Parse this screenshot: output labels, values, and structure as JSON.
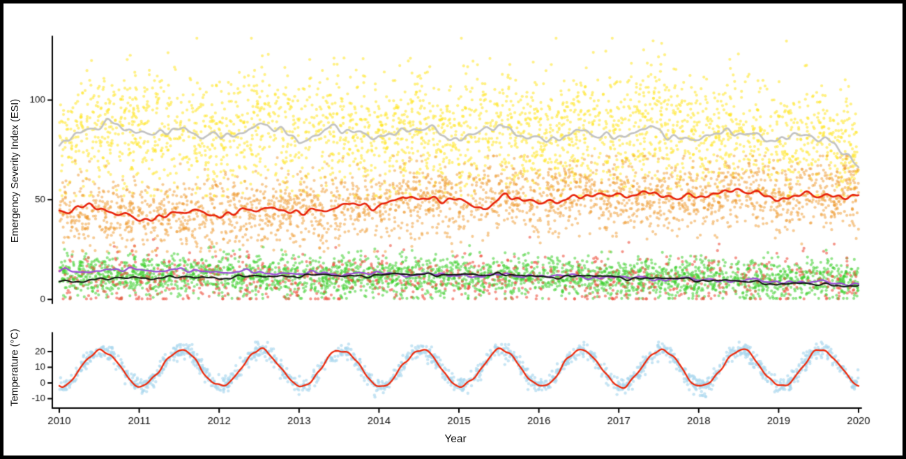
{
  "figure": {
    "xlabel": "Year",
    "top_ylabel": "Emergency Severity Index (ESI)",
    "bottom_ylabel": "Temperature (°C)",
    "background": "#ffffff",
    "frame_color": "#000000",
    "axis_color": "#000000",
    "tick_label_color": "#111111"
  },
  "chart_data": [
    {
      "type": "scatter",
      "panel": "top",
      "title": "",
      "xlabel": "Year",
      "ylabel": "Emergency Severity Index (ESI)",
      "xlim": [
        2010,
        2020
      ],
      "ylim": [
        -2,
        132
      ],
      "yticks": [
        0,
        50,
        100
      ],
      "xticks": [
        2010,
        2011,
        2012,
        2013,
        2014,
        2015,
        2016,
        2017,
        2018,
        2019,
        2020
      ],
      "grid": false,
      "legend": "none",
      "scatter_series": [
        {
          "name": "yellow-points-high-esi-band",
          "color": "#ffe623",
          "opacity": 0.55,
          "radius": 2.1,
          "count": 2800,
          "noise_sd": 15,
          "clip": [
            52,
            131
          ],
          "mean_x": [
            2010,
            2010.5,
            2011,
            2011.5,
            2012,
            2012.5,
            2013,
            2013.5,
            2014,
            2014.5,
            2015,
            2015.5,
            2016,
            2016.5,
            2017,
            2017.5,
            2018,
            2018.5,
            2019,
            2019.5,
            2019.9,
            2020
          ],
          "mean_y": [
            79,
            88,
            84,
            86,
            81,
            87,
            82,
            87,
            81,
            85,
            83,
            87,
            81,
            85,
            83,
            86,
            81,
            84,
            81,
            83,
            75,
            68
          ]
        },
        {
          "name": "orange-points-mid-esi-band",
          "color": "#f09a2e",
          "opacity": 0.5,
          "radius": 2.1,
          "count": 2600,
          "noise_sd": 9,
          "clip": [
            24,
            72
          ],
          "mean_x": [
            2010,
            2011,
            2012,
            2013,
            2014,
            2014.3,
            2015,
            2015.5,
            2016,
            2016.5,
            2017,
            2018,
            2018.5,
            2019,
            2020
          ],
          "mean_y": [
            44,
            42,
            43,
            45,
            46,
            52,
            49,
            53,
            48,
            54,
            51,
            52,
            55,
            51,
            53
          ]
        },
        {
          "name": "green-points-low-esi-band",
          "color": "#3ecf2e",
          "opacity": 0.55,
          "radius": 2.1,
          "count": 2900,
          "noise_sd": 5,
          "clip": [
            0.5,
            27
          ],
          "mean_x": [
            2010,
            2014,
            2017,
            2020
          ],
          "mean_y": [
            12,
            12,
            11,
            9
          ]
        },
        {
          "name": "red-points-low-esi-band",
          "color": "#ef5240",
          "opacity": 0.6,
          "radius": 2.1,
          "count": 850,
          "noise_sd": 7,
          "clip": [
            0.3,
            34
          ],
          "mean_x": [
            2010,
            2015,
            2020
          ],
          "mean_y": [
            10,
            10,
            9
          ]
        }
      ],
      "line_series": [
        {
          "name": "gray-smoothed-mean-of-yellow",
          "color": "#c2c2c2",
          "width": 2.6,
          "wiggle": 2.2,
          "x": [
            2010,
            2010.3,
            2010.6,
            2011,
            2011.4,
            2011.8,
            2012.2,
            2012.6,
            2013,
            2013.4,
            2013.8,
            2014.2,
            2014.6,
            2015,
            2015.4,
            2015.8,
            2016.2,
            2016.6,
            2017,
            2017.4,
            2017.8,
            2018.2,
            2018.6,
            2019,
            2019.4,
            2019.7,
            2019.9,
            2020
          ],
          "y": [
            77,
            86,
            88,
            83,
            86,
            81,
            84,
            87,
            80,
            86,
            82,
            84,
            85,
            81,
            86,
            83,
            80,
            84,
            82,
            85,
            81,
            82,
            84,
            80,
            82,
            79,
            72,
            65
          ]
        },
        {
          "name": "red-smoothed-mean-of-orange",
          "color": "#e8230a",
          "width": 2.6,
          "wiggle": 1.8,
          "x": [
            2010,
            2010.4,
            2010.8,
            2011.2,
            2011.6,
            2012,
            2012.4,
            2012.8,
            2013.2,
            2013.6,
            2014,
            2014.3,
            2014.6,
            2015,
            2015.3,
            2015.6,
            2016,
            2016.3,
            2016.7,
            2017,
            2017.4,
            2017.8,
            2018.2,
            2018.6,
            2019,
            2019.4,
            2019.8,
            2020
          ],
          "y": [
            44,
            46,
            43,
            40,
            44,
            43,
            45,
            44,
            45,
            47,
            46,
            53,
            50,
            49,
            46,
            53,
            47,
            50,
            54,
            51,
            53,
            52,
            52,
            55,
            51,
            52,
            51,
            54
          ]
        },
        {
          "name": "purple-smoothed-mean-line",
          "color": "#9a4fd6",
          "width": 2.3,
          "wiggle": 1.0,
          "x": [
            2010,
            2011,
            2012,
            2013,
            2014,
            2015,
            2016,
            2017,
            2018,
            2019,
            2020
          ],
          "y": [
            14,
            15,
            14,
            13,
            13,
            12,
            12,
            11,
            10,
            9,
            8
          ]
        },
        {
          "name": "black-smoothed-mean-line",
          "color": "#141414",
          "width": 2.1,
          "wiggle": 0.8,
          "x": [
            2010,
            2010.5,
            2011,
            2012,
            2013,
            2014,
            2014.5,
            2015,
            2015.5,
            2016,
            2016.5,
            2017,
            2018,
            2019,
            2020
          ],
          "y": [
            9,
            10,
            11,
            11,
            12,
            12,
            13,
            12,
            13,
            11,
            12,
            11,
            10,
            8,
            7
          ]
        }
      ]
    },
    {
      "type": "scatter",
      "panel": "bottom",
      "title": "",
      "xlabel": "Year",
      "ylabel": "Temperature (°C)",
      "xlim": [
        2010,
        2020
      ],
      "ylim": [
        -16,
        32
      ],
      "yticks": [
        -10,
        0,
        10,
        20
      ],
      "xticks": [
        2010,
        2011,
        2012,
        2013,
        2014,
        2015,
        2016,
        2017,
        2018,
        2019,
        2020
      ],
      "grid": false,
      "legend": "none",
      "scatter_series": [
        {
          "name": "lightblue-daily-temperature-points",
          "color": "#a9d7ee",
          "opacity": 0.65,
          "radius": 2.2,
          "count": 1700,
          "noise_sd": 2.6,
          "clip": [
            -12,
            26
          ],
          "seasonal": {
            "base": 9.5,
            "amplitude": 11.5,
            "min_fraction_of_year": 0.03
          }
        }
      ],
      "line_series": [
        {
          "name": "red-smoothed-temperature-line",
          "color": "#ee2b0d",
          "width": 2.3,
          "wiggle": 1.3,
          "seasonal": {
            "base": 9.5,
            "amplitude": 11.0,
            "min_fraction_of_year": 0.03
          }
        }
      ]
    }
  ]
}
